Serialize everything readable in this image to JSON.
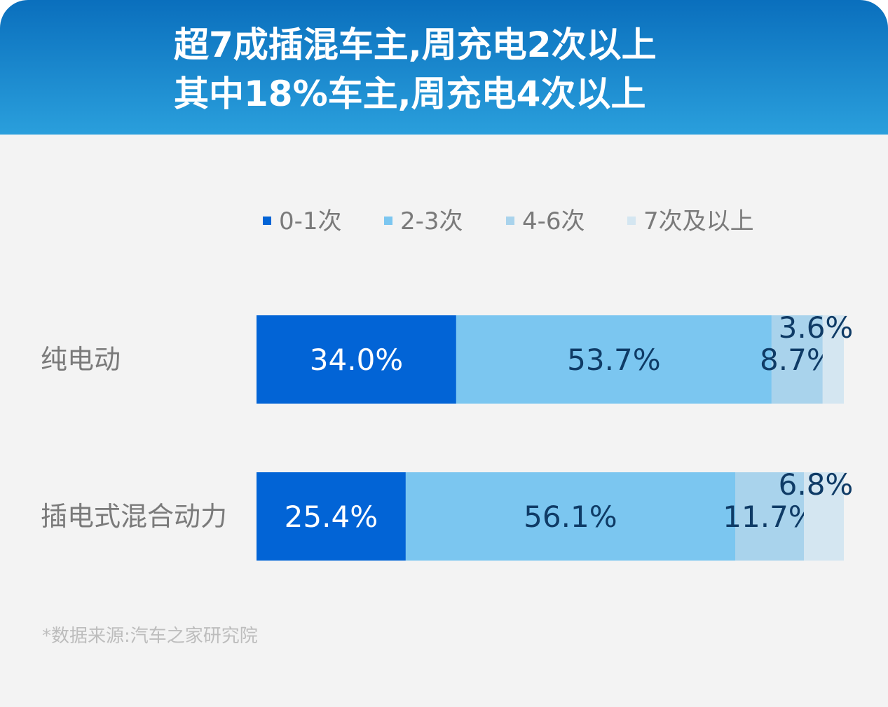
{
  "header": {
    "title_line1": "超7成插混车主,周充电2次以上",
    "title_line2": "其中18%车主,周充电4次以上"
  },
  "chart_data": {
    "type": "bar",
    "orientation": "horizontal",
    "stacked": true,
    "categories": [
      "纯电动",
      "插电式混合动力"
    ],
    "series": [
      {
        "name": "0-1次",
        "values": [
          34.0,
          25.4
        ],
        "color": "#0264d6"
      },
      {
        "name": "2-3次",
        "values": [
          53.7,
          56.1
        ],
        "color": "#7bc6f0"
      },
      {
        "name": "4-6次",
        "values": [
          8.7,
          11.7
        ],
        "color": "#a9d3ec"
      },
      {
        "name": "7次及以上",
        "values": [
          3.6,
          6.8
        ],
        "color": "#d4e6f1"
      }
    ],
    "data_labels": [
      [
        "34.0%",
        "53.7%",
        "8.7%",
        "3.6%"
      ],
      [
        "25.4%",
        "56.1%",
        "11.7%",
        "6.8%"
      ]
    ],
    "label_colors": [
      "#ffffff",
      "#0f3b66",
      "#0f3b66",
      "#0f3b66"
    ],
    "category_label_color": "#7a7a7a",
    "legend_position": "top",
    "unit": "%",
    "xlim": [
      0,
      100
    ],
    "grid": false
  },
  "footer": {
    "source": "*数据来源:汽车之家研究院"
  }
}
